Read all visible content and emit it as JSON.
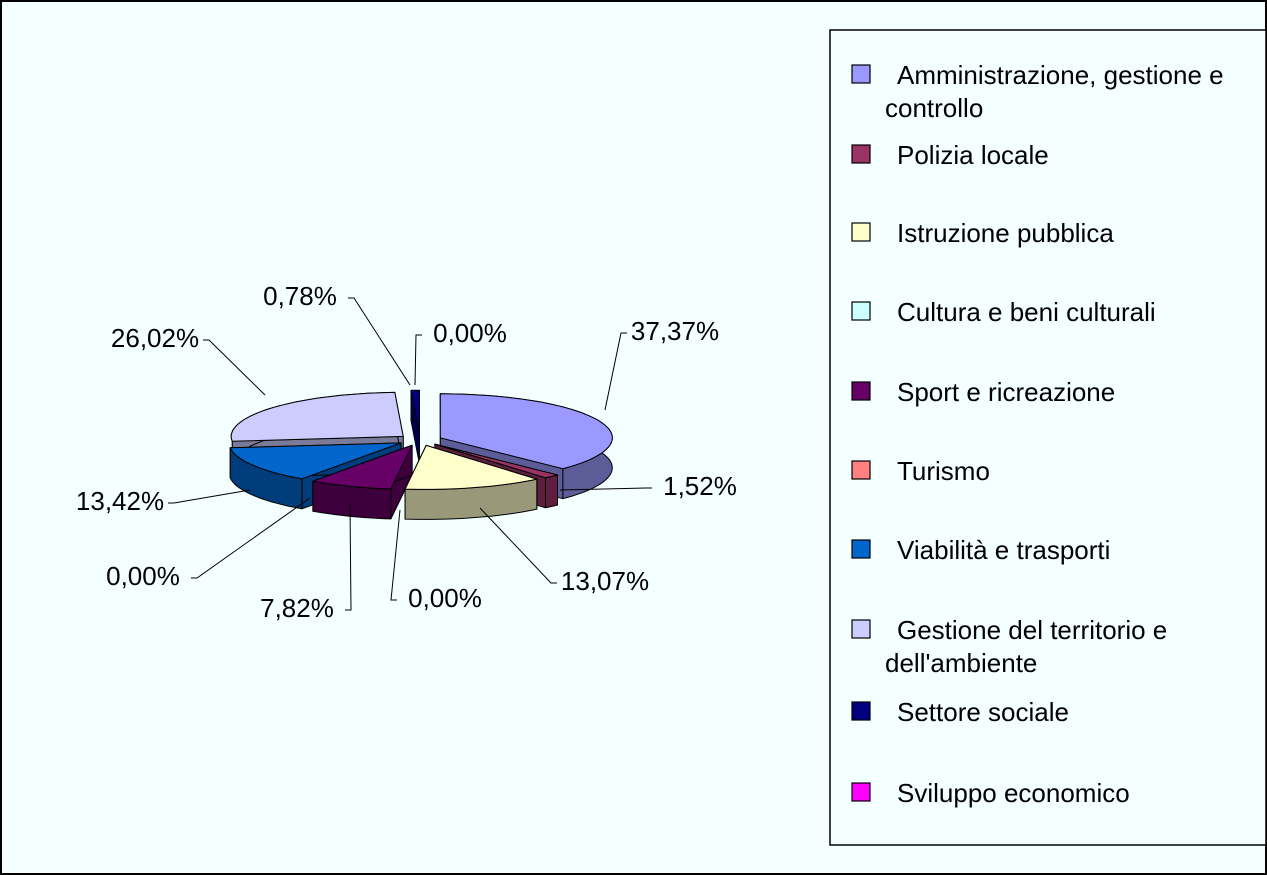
{
  "chart_data": {
    "type": "pie3d",
    "categories": [
      "Amministrazione, gestione e controllo",
      "Polizia locale",
      "Istruzione pubblica",
      "Cultura e beni culturali",
      "Sport e ricreazione",
      "Turismo",
      "Viabilità e trasporti",
      "Gestione del territorio e dell'ambiente",
      "Settore sociale",
      "Sviluppo economico"
    ],
    "values": [
      37.37,
      1.52,
      13.07,
      0.0,
      7.82,
      0.0,
      13.42,
      26.02,
      0.78,
      0.0
    ],
    "value_labels": [
      "37,37%",
      "1,52%",
      "13,07%",
      "0,00%",
      "7,82%",
      "0,00%",
      "13,42%",
      "26,02%",
      "0,78%",
      "0,00%"
    ],
    "colors": [
      "#9999ff",
      "#993366",
      "#ffffcc",
      "#ccffff",
      "#660066",
      "#ff8080",
      "#0066cc",
      "#ccccff",
      "#000080",
      "#ff00ff"
    ],
    "legend": "right"
  }
}
